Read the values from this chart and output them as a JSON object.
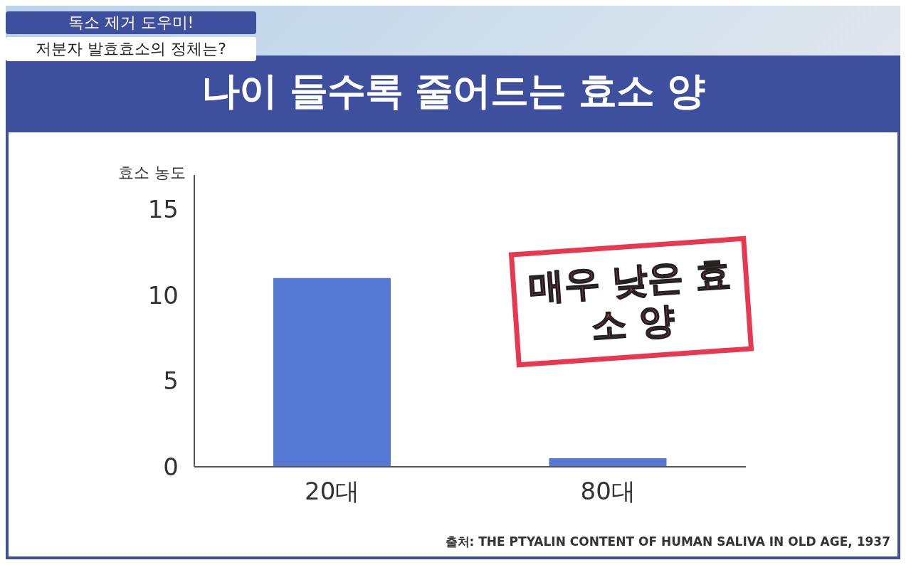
{
  "chart_data": {
    "type": "bar",
    "title": "나이 들수록 줄어드는 효소 양",
    "ylabel": "효소 농도",
    "categories": [
      "20대",
      "80대"
    ],
    "values": [
      11,
      0.5
    ],
    "color": "#5578d4",
    "ylim": [
      0,
      17
    ],
    "yticks": [
      0,
      5,
      10,
      15
    ],
    "grid": false,
    "legend": false,
    "annotations": [
      "독소 제거 도우미!",
      "저분자 발효효소의 정체는?",
      "매우 낮은 효소 양",
      "출처: THE PTYALIN CONTENT OF HUMAN SALIVA IN OLD AGE, 1937"
    ]
  }
}
